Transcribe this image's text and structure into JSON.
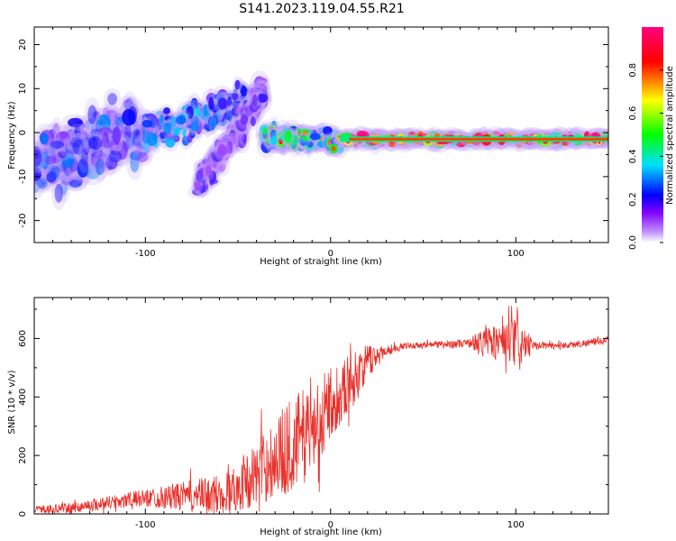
{
  "title": "S141.2023.119.04.55.R21",
  "chart_data": [
    {
      "type": "heatmap",
      "xlabel": "Height of straight line (km)",
      "ylabel": "Frequency (Hz)",
      "xlim": [
        -160,
        150
      ],
      "ylim": [
        -25,
        24
      ],
      "xticks": [
        -100,
        0,
        100
      ],
      "yticks": [
        -20,
        -10,
        0,
        10,
        20
      ],
      "grid": false,
      "colorbar": {
        "label": "Normalized spectral amplitude",
        "range": [
          0.0,
          1.0
        ],
        "ticks": [
          "0.0",
          "0.2",
          "0.4",
          "0.6",
          "0.8"
        ],
        "colormap": [
          "#ffffff",
          "#a040ff",
          "#0000ff",
          "#00e0ff",
          "#00ff00",
          "#ffff00",
          "#ff0000",
          "#ff0080"
        ]
      },
      "features": [
        {
          "segment": "low-altitude scatter",
          "x": [
            -160,
            -100
          ],
          "y_center": [
            -7,
            0
          ],
          "amplitude": 0.3
        },
        {
          "segment": "rising branch",
          "x": [
            -100,
            -40
          ],
          "y_center": [
            0,
            8
          ],
          "amplitude": 0.35
        },
        {
          "segment": "lower rising branch",
          "x": [
            -72,
            -36
          ],
          "y_center": [
            -12,
            9
          ],
          "amplitude": 0.2
        },
        {
          "segment": "converging band",
          "x": [
            -36,
            5
          ],
          "y_center": [
            -1,
            -2
          ],
          "amplitude": 0.5
        },
        {
          "segment": "stable band",
          "x": [
            5,
            150
          ],
          "y_center": [
            -1.5,
            -1.5
          ],
          "amplitude": 0.9
        }
      ]
    },
    {
      "type": "line",
      "xlabel": "Height of straight line (km)",
      "ylabel": "SNR (10 * v/v)",
      "xlim": [
        -160,
        150
      ],
      "ylim": [
        0,
        740
      ],
      "xticks": [
        -100,
        0,
        100
      ],
      "yticks": [
        0,
        200,
        400,
        600
      ],
      "grid": false,
      "color": "#e8302a",
      "trend": {
        "x": [
          -160,
          -140,
          -120,
          -100,
          -80,
          -60,
          -50,
          -40,
          -30,
          -20,
          -10,
          0,
          10,
          20,
          30,
          40,
          60,
          80,
          90,
          100,
          110,
          130,
          150
        ],
        "y": [
          15,
          20,
          40,
          55,
          60,
          65,
          90,
          140,
          190,
          240,
          290,
          380,
          450,
          520,
          560,
          575,
          580,
          585,
          590,
          580,
          575,
          578,
          595
        ]
      },
      "noise": {
        "x": [
          -160,
          -100,
          -50,
          -40,
          -20,
          -10,
          0,
          10,
          30,
          40,
          75,
          80,
          100,
          105,
          110,
          150
        ],
        "amplitude": [
          12,
          30,
          80,
          110,
          170,
          160,
          120,
          100,
          20,
          10,
          15,
          45,
          85,
          60,
          12,
          12
        ]
      }
    }
  ]
}
